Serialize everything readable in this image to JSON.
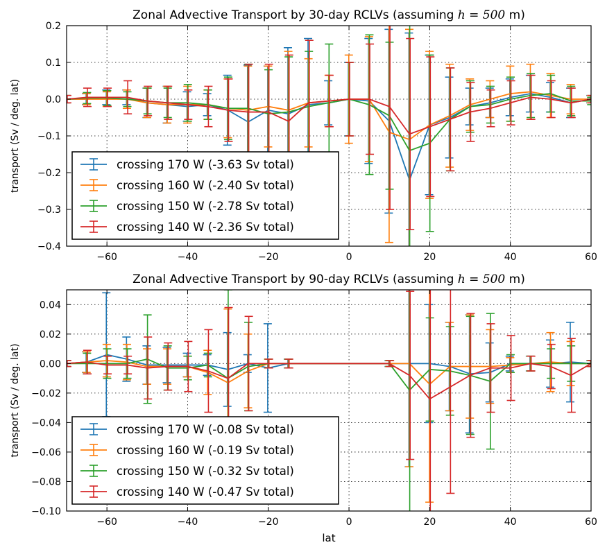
{
  "chart_data": [
    {
      "type": "line",
      "title_prefix": "Zonal Advective Transport by 30-day RCLVs (assuming ",
      "title_math": "h = 500",
      "title_suffix": " m)",
      "xlabel": "",
      "ylabel": "transport (Sv / deg. lat)",
      "xlim": [
        -70,
        60
      ],
      "ylim": [
        -0.4,
        0.2
      ],
      "xticks": [
        -60,
        -40,
        -20,
        0,
        20,
        40,
        60
      ],
      "yticks": [
        -0.4,
        -0.3,
        -0.2,
        -0.1,
        0.0,
        0.1,
        0.2
      ],
      "ytick_labels": [
        "−0.4",
        "−0.3",
        "−0.2",
        "−0.1",
        "0.0",
        "0.1",
        "0.2"
      ],
      "xtick_labels": [
        "−60",
        "−40",
        "−20",
        "0",
        "20",
        "40",
        "60"
      ],
      "grid": true,
      "legend_position": "lower-left",
      "x": [
        -70,
        -65,
        -60,
        -55,
        -50,
        -45,
        -40,
        -35,
        -30,
        -25,
        -20,
        -15,
        -10,
        -5,
        0,
        5,
        10,
        15,
        20,
        25,
        30,
        35,
        40,
        45,
        50,
        55,
        60
      ],
      "series": [
        {
          "name": "crossing 170 W (-3.63 Sv total)",
          "color": "#1f77b4",
          "values": [
            0,
            0,
            0.005,
            0.005,
            -0.01,
            -0.015,
            -0.02,
            -0.015,
            -0.03,
            -0.062,
            -0.03,
            -0.04,
            -0.015,
            -0.01,
            0,
            -0.005,
            -0.06,
            -0.22,
            -0.07,
            -0.05,
            -0.02,
            -0.01,
            0.005,
            0.015,
            0.005,
            -0.01,
            0
          ],
          "errors": [
            0.01,
            0.015,
            0.02,
            0.02,
            0.04,
            0.05,
            0.04,
            0.03,
            0.095,
            0.155,
            0.12,
            0.18,
            0.18,
            0.06,
            0.1,
            0.17,
            0.25,
            0.4,
            0.19,
            0.11,
            0.05,
            0.04,
            0.05,
            0.05,
            0.04,
            0.04,
            0.01
          ]
        },
        {
          "name": "crossing 160 W (-2.40 Sv total)",
          "color": "#ff7f0e",
          "values": [
            0,
            0,
            0,
            0,
            -0.01,
            -0.015,
            -0.015,
            -0.015,
            -0.025,
            -0.03,
            -0.02,
            -0.03,
            -0.01,
            -0.005,
            0,
            0,
            -0.09,
            -0.11,
            -0.07,
            -0.045,
            -0.015,
            0,
            0.015,
            0.02,
            0.01,
            0,
            0
          ],
          "errors": [
            0.01,
            0.015,
            0.02,
            0.025,
            0.04,
            0.05,
            0.05,
            0.04,
            0.08,
            0.12,
            0.11,
            0.16,
            0.12,
            0.07,
            0.12,
            0.17,
            0.3,
            0.3,
            0.2,
            0.14,
            0.07,
            0.05,
            0.075,
            0.075,
            0.06,
            0.04,
            0.01
          ]
        },
        {
          "name": "crossing 150 W (-2.78 Sv total)",
          "color": "#2ca02c",
          "values": [
            0,
            0.003,
            0.003,
            0,
            -0.005,
            -0.01,
            -0.01,
            -0.015,
            -0.025,
            -0.025,
            -0.04,
            -0.035,
            -0.02,
            -0.01,
            0,
            -0.015,
            -0.045,
            -0.14,
            -0.12,
            -0.055,
            -0.02,
            -0.015,
            0,
            0.01,
            0.015,
            -0.005,
            -0.005
          ],
          "errors": [
            0.01,
            0.015,
            0.02,
            0.02,
            0.035,
            0.04,
            0.05,
            0.04,
            0.085,
            0.12,
            0.12,
            0.15,
            0.15,
            0.16,
            0.1,
            0.19,
            0.2,
            0.4,
            0.24,
            0.14,
            0.07,
            0.05,
            0.06,
            0.06,
            0.05,
            0.04,
            0.01
          ]
        },
        {
          "name": "crossing 140 W (-2.36 Sv total)",
          "color": "#d62728",
          "values": [
            0,
            0.005,
            0.005,
            0.005,
            -0.005,
            -0.01,
            -0.015,
            -0.02,
            -0.03,
            -0.035,
            -0.035,
            -0.06,
            -0.01,
            -0.005,
            0,
            0,
            -0.02,
            -0.095,
            -0.075,
            -0.055,
            -0.035,
            -0.025,
            -0.01,
            0.005,
            0,
            -0.01,
            0
          ],
          "errors": [
            0.01,
            0.025,
            0.025,
            0.045,
            0.04,
            0.045,
            0.04,
            0.055,
            0.085,
            0.13,
            0.13,
            0.18,
            0.17,
            0.07,
            0.1,
            0.15,
            0.28,
            0.26,
            0.19,
            0.14,
            0.08,
            0.05,
            0.06,
            0.06,
            0.05,
            0.04,
            0.01
          ]
        }
      ]
    },
    {
      "type": "line",
      "title_prefix": "Zonal Advective Transport by 90-day RCLVs (assuming ",
      "title_math": "h = 500",
      "title_suffix": " m)",
      "xlabel": "lat",
      "ylabel": "transport (Sv / deg. lat)",
      "xlim": [
        -70,
        60
      ],
      "ylim": [
        -0.1,
        0.05
      ],
      "xticks": [
        -60,
        -40,
        -20,
        0,
        20,
        40,
        60
      ],
      "yticks": [
        -0.1,
        -0.08,
        -0.06,
        -0.04,
        -0.02,
        0.0,
        0.02,
        0.04
      ],
      "ytick_labels": [
        "−0.10",
        "−0.08",
        "−0.06",
        "−0.04",
        "−0.02",
        "0.00",
        "0.02",
        "0.04"
      ],
      "xtick_labels": [
        "−60",
        "−40",
        "−20",
        "0",
        "20",
        "40",
        "60"
      ],
      "grid": true,
      "legend_position": "lower-left",
      "x": [
        -70,
        -65,
        -60,
        -55,
        -50,
        -45,
        -40,
        -35,
        -30,
        -25,
        -20,
        -15,
        10,
        15,
        20,
        25,
        30,
        35,
        40,
        45,
        50,
        55,
        60
      ],
      "series": [
        {
          "name": "crossing 170 W (-0.08 Sv total)",
          "color": "#1f77b4",
          "values": [
            0,
            0.001,
            0.006,
            0.003,
            -0.001,
            -0.001,
            -0.001,
            -0.001,
            -0.004,
            0,
            -0.003,
            0,
            0,
            0,
            0,
            -0.002,
            -0.007,
            -0.006,
            0,
            0,
            0,
            0.001,
            0
          ],
          "errors": [
            0.002,
            0.007,
            0.042,
            0.015,
            0.013,
            0.012,
            0.008,
            0.007,
            0.025,
            0.006,
            0.03,
            0.003,
            0.002,
            0.07,
            0.04,
            0.03,
            0.04,
            0.02,
            0.005,
            0.005,
            0.016,
            0.027,
            0.002
          ]
        },
        {
          "name": "crossing 160 W (-0.19 Sv total)",
          "color": "#ff7f0e",
          "values": [
            0,
            0.001,
            0.002,
            0.001,
            -0.002,
            -0.002,
            -0.002,
            -0.006,
            -0.013,
            -0.005,
            0,
            0,
            0,
            0,
            -0.014,
            -0.002,
            -0.002,
            -0.002,
            -0.001,
            0,
            0.001,
            0,
            0
          ],
          "errors": [
            0.002,
            0.007,
            0.011,
            0.012,
            0.012,
            0.012,
            0.007,
            0.015,
            0.05,
            0.025,
            0.003,
            0.003,
            0.002,
            0.07,
            0.08,
            0.03,
            0.035,
            0.025,
            0.005,
            0.005,
            0.02,
            0.015,
            0.002
          ]
        },
        {
          "name": "crossing 150 W (-0.32 Sv total)",
          "color": "#2ca02c",
          "values": [
            0,
            0,
            0,
            0,
            0.003,
            -0.003,
            -0.003,
            -0.001,
            -0.01,
            -0.002,
            0,
            0,
            0,
            -0.018,
            -0.004,
            -0.005,
            -0.008,
            -0.012,
            0,
            0,
            0,
            0,
            0
          ],
          "errors": [
            0.002,
            0.007,
            0.01,
            0.01,
            0.03,
            0.015,
            0.008,
            0.008,
            0.06,
            0.03,
            0.003,
            0.003,
            0.002,
            0.1,
            0.035,
            0.03,
            0.04,
            0.046,
            0.006,
            0.005,
            0.01,
            0.012,
            0.002
          ]
        },
        {
          "name": "crossing 140 W (-0.47 Sv total)",
          "color": "#d62728",
          "values": [
            0,
            0.001,
            -0.001,
            -0.001,
            -0.003,
            -0.002,
            -0.002,
            -0.005,
            -0.01,
            0,
            0,
            0,
            0,
            -0.008,
            -0.024,
            -0.016,
            -0.008,
            -0.003,
            -0.003,
            0,
            -0.002,
            -0.008,
            0
          ],
          "errors": [
            0.002,
            0.008,
            0.006,
            0.006,
            0.021,
            0.016,
            0.017,
            0.028,
            0.048,
            0.032,
            0.003,
            0.003,
            0.002,
            0.057,
            0.08,
            0.072,
            0.042,
            0.03,
            0.022,
            0.005,
            0.015,
            0.025,
            0.002
          ]
        }
      ]
    }
  ]
}
